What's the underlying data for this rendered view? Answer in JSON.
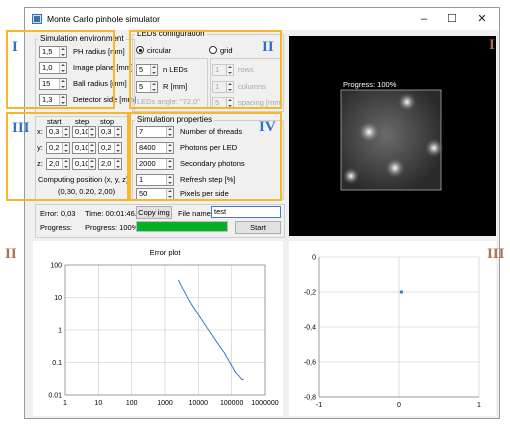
{
  "window": {
    "title": "Monte Carlo pinhole simulator",
    "controls": [
      "–",
      "☐",
      "✕"
    ]
  },
  "annotations": {
    "I": "I",
    "II": "II",
    "III": "III",
    "IV": "IV",
    "outer_I": "I",
    "outer_II": "II",
    "outer_III": "III"
  },
  "sim_env": {
    "title": "Simulation environment",
    "fields": [
      {
        "value": "1,5",
        "label": "PH radius [mm]"
      },
      {
        "value": "1,0",
        "label": "Image plane [mm]"
      },
      {
        "value": "15",
        "label": "Ball radius [mm]"
      },
      {
        "value": "1,3",
        "label": "Detector side [mm]"
      }
    ]
  },
  "leds": {
    "title": "LEDs configuration",
    "circular": "circular",
    "grid": "grid",
    "n_leds_value": "5",
    "n_leds_label": "n LEDs",
    "r_value": "5",
    "r_label": "R [mm]",
    "angle_label": "LEDs angle: \"72,0\"",
    "rows_value": "1",
    "rows_label": "rows",
    "columns_value": "1",
    "columns_label": "columns",
    "spacing_value": "5",
    "spacing_label": "spacing [mm]"
  },
  "position": {
    "headers": [
      "start",
      "step",
      "stop"
    ],
    "rows": [
      {
        "axis": "x:",
        "start": "0,3",
        "step": "0,10",
        "stop": "0,3"
      },
      {
        "axis": "y:",
        "start": "0,2",
        "step": "0,10",
        "stop": "0,2"
      },
      {
        "axis": "z:",
        "start": "2,0",
        "step": "0,10",
        "stop": "2,0"
      }
    ],
    "computing_label": "Computing position (x, y, z):",
    "computing_value": "(0,30, 0.20, 2,00)"
  },
  "sim_props": {
    "title": "Simulation properties",
    "fields": [
      {
        "value": "7",
        "label": "Number of threads"
      },
      {
        "value": "8400",
        "label": "Photons per LED"
      },
      {
        "value": "2000",
        "label": "Secondary photons"
      },
      {
        "value": "1",
        "label": "Refresh step [%]"
      },
      {
        "value": "50",
        "label": "Pixels per side"
      }
    ]
  },
  "status": {
    "error": "Error: 0,03",
    "time": "Time: 00:01:46.46",
    "copy_img": "Copy img",
    "file_name_label": "File name:",
    "file_name_value": "test",
    "progress_label": "Progress:",
    "progress_text": "Progress: 100%",
    "progress_fraction": 1.0,
    "start": "Start"
  },
  "image": {
    "overlay_text": "Progress: 100%"
  },
  "error_plot": {
    "title": "Error plot",
    "y_ticks": [
      "100",
      "10",
      "1",
      "0.1",
      "0.01"
    ],
    "x_ticks": [
      "1",
      "10",
      "100",
      "1000",
      "10000",
      "100000",
      "1000000"
    ]
  },
  "position_plot": {
    "y_ticks": [
      "0",
      "-0,2",
      "-0,4",
      "-0,6",
      "-0,8"
    ],
    "x_ticks": [
      "-1",
      "0",
      "1"
    ]
  },
  "chart_data": [
    {
      "type": "line",
      "title": "Error plot",
      "xscale": "log",
      "yscale": "log",
      "xlim": [
        1,
        1000000
      ],
      "ylim": [
        0.01,
        100
      ],
      "grid": true,
      "series": [
        {
          "x": [
            2500,
            3500,
            5000,
            7000,
            10000,
            15000,
            22000,
            32000,
            45000,
            60000,
            80000,
            100000,
            130000,
            160000,
            200000,
            230000
          ],
          "y": [
            35,
            18,
            9,
            5,
            3,
            1.6,
            0.9,
            0.5,
            0.3,
            0.2,
            0.12,
            0.08,
            0.05,
            0.04,
            0.03,
            0.03
          ]
        }
      ]
    },
    {
      "type": "scatter",
      "xlim": [
        -1,
        1
      ],
      "ylim": [
        -0.8,
        0
      ],
      "grid": true,
      "series": [
        {
          "x": [
            0.03
          ],
          "y": [
            -0.2
          ]
        }
      ]
    }
  ]
}
